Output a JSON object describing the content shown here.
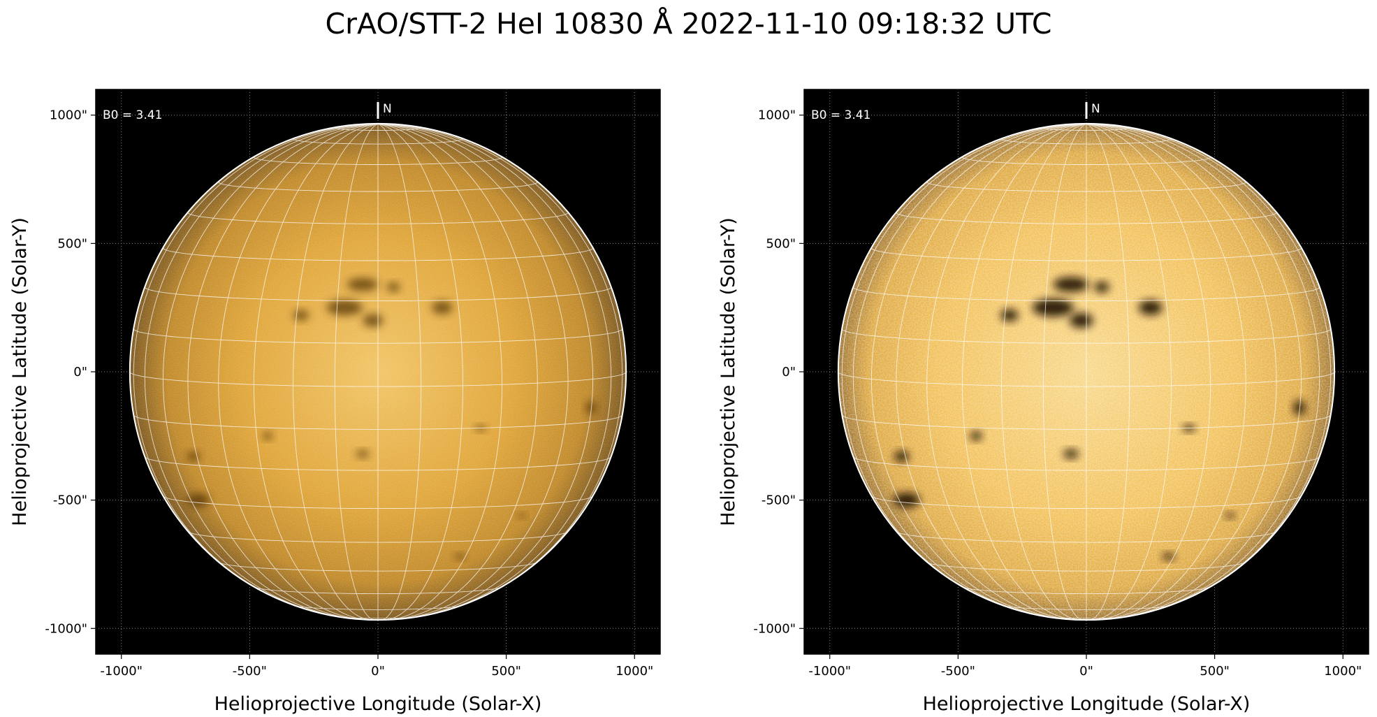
{
  "figure": {
    "title": "CrAO/STT-2 HeI 10830 Å 2022-11-10 09:18:32 UTC",
    "colors": {
      "disk_dark": "#3a2200",
      "disk_mid": "#c98511",
      "disk_light": "#f2c65a",
      "background": "#000000",
      "grid": "#ffffff"
    }
  },
  "panels": [
    {
      "id": "left",
      "annotation": "B0 = 3.41",
      "north_label": "N",
      "xlabel": "Helioprojective Longitude (Solar-X)",
      "ylabel": "Helioprojective Latitude (Solar-Y)",
      "xticks": [
        "-1000\"",
        "-500\"",
        "0\"",
        "500\"",
        "1000\""
      ],
      "yticks": [
        "1000\"",
        "500\"",
        "0\"",
        "-500\"",
        "-1000\""
      ],
      "contrast": "normal"
    },
    {
      "id": "right",
      "annotation": "B0 = 3.41",
      "north_label": "N",
      "xlabel": "Helioprojective Longitude (Solar-X)",
      "ylabel": "Helioprojective Latitude (Solar-Y)",
      "xticks": [
        "-1000\"",
        "-500\"",
        "0\"",
        "500\"",
        "1000\""
      ],
      "yticks": [
        "1000\"",
        "500\"",
        "0\"",
        "-500\"",
        "-1000\""
      ],
      "contrast": "enhanced"
    }
  ],
  "solar_disk": {
    "radius_arcsec": 967,
    "b0_deg": 3.41,
    "axis_range_arcsec": [
      -1100,
      1100
    ],
    "tick_values_arcsec": [
      -1000,
      -500,
      0,
      500,
      1000
    ]
  }
}
